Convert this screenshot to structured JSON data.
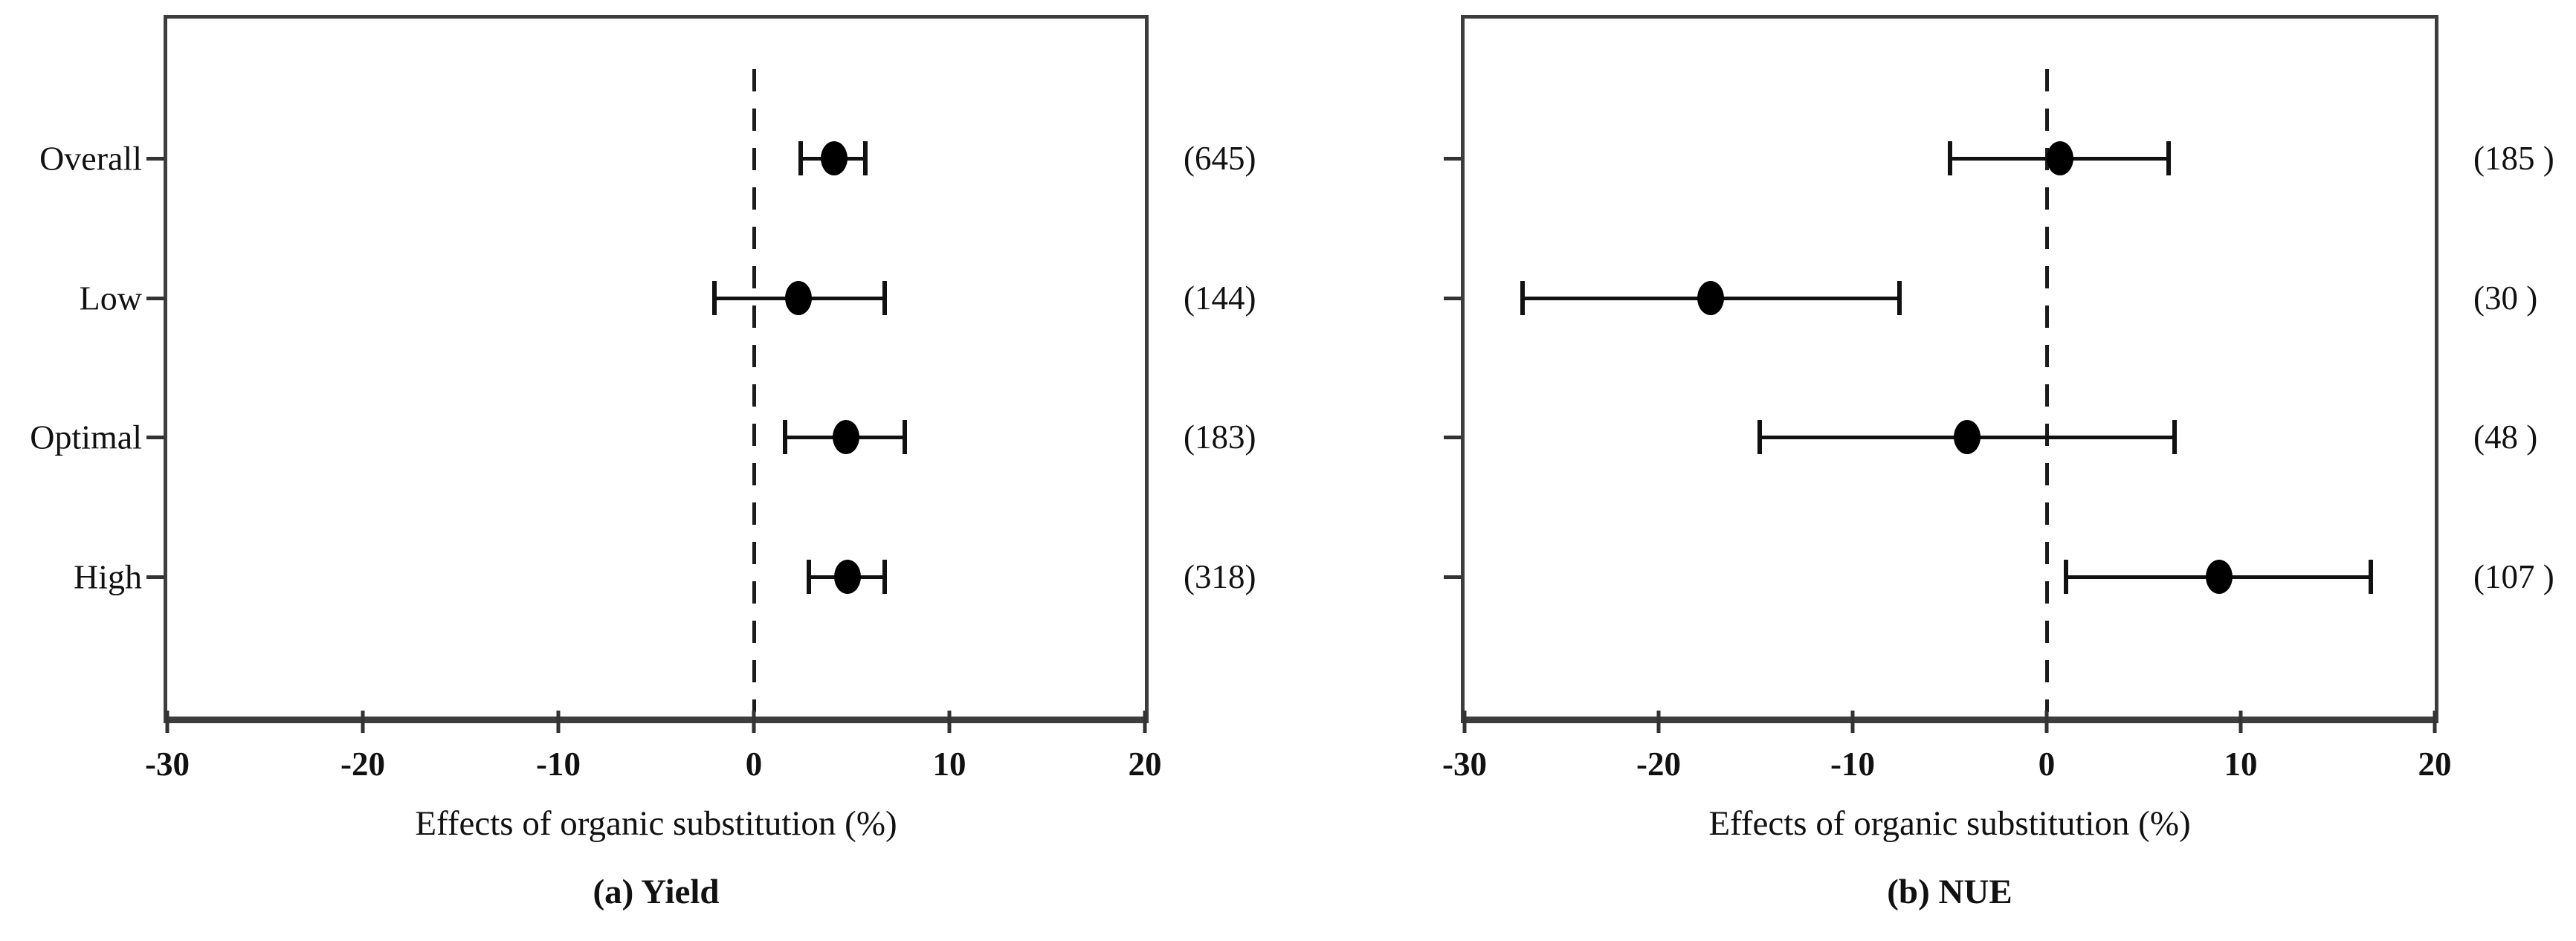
{
  "figure": {
    "description": "Two-panel forest plot of effects of organic substitution",
    "panels": [
      "(a) Yield",
      "(b) NUE"
    ]
  },
  "colors": {
    "ink": "#111111",
    "frame": "#3d3d3d",
    "background": "#ffffff"
  },
  "chart_data": [
    {
      "type": "forest",
      "caption": "(a) Yield",
      "xlabel": "Effects of organic substitution (%)",
      "xlim": [
        -30,
        20
      ],
      "xticks": [
        -30,
        -20,
        -10,
        0,
        10,
        20
      ],
      "reference_line_x": 0,
      "grid": false,
      "legend": "none",
      "show_category_labels": true,
      "categories": [
        "Overall",
        "Low",
        "Optimal",
        "High"
      ],
      "rows": [
        {
          "category": "Overall",
          "mean": 4.1,
          "ci_low": 2.4,
          "ci_high": 5.7,
          "count_label": "(645)"
        },
        {
          "category": "Low",
          "mean": 2.3,
          "ci_low": -2.0,
          "ci_high": 6.7,
          "count_label": "(144)"
        },
        {
          "category": "Optimal",
          "mean": 4.7,
          "ci_low": 1.6,
          "ci_high": 7.7,
          "count_label": "(183)"
        },
        {
          "category": "High",
          "mean": 4.8,
          "ci_low": 2.8,
          "ci_high": 6.7,
          "count_label": "(318)"
        }
      ]
    },
    {
      "type": "forest",
      "caption": "(b) NUE",
      "xlabel": "Effects of organic substitution (%)",
      "xlim": [
        -30,
        20
      ],
      "xticks": [
        -30,
        -20,
        -10,
        0,
        10,
        20
      ],
      "reference_line_x": 0,
      "grid": false,
      "legend": "none",
      "show_category_labels": false,
      "categories": [
        "Overall",
        "Low",
        "Optimal",
        "High"
      ],
      "rows": [
        {
          "category": "Overall",
          "mean": 0.7,
          "ci_low": -5.0,
          "ci_high": 6.3,
          "count_label": "(185 )"
        },
        {
          "category": "Low",
          "mean": -17.3,
          "ci_low": -27.0,
          "ci_high": -7.6,
          "count_label": "(30 )"
        },
        {
          "category": "Optimal",
          "mean": -4.1,
          "ci_low": -14.8,
          "ci_high": 6.6,
          "count_label": "(48 )"
        },
        {
          "category": "High",
          "mean": 8.9,
          "ci_low": 1.0,
          "ci_high": 16.7,
          "count_label": "(107 )"
        }
      ]
    }
  ]
}
